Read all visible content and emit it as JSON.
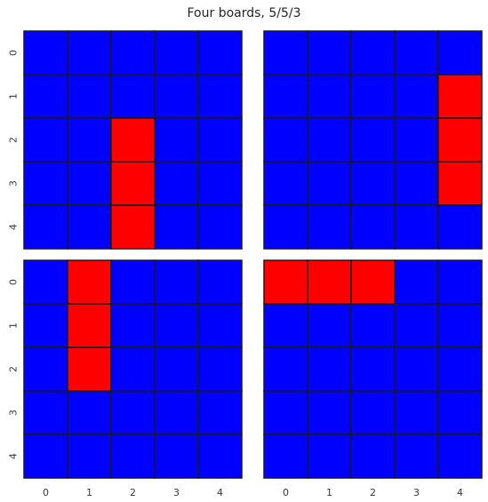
{
  "chart_data": {
    "type": "heatmap",
    "title": "Four boards, 5/5/3",
    "colors": {
      "0": "#0000ff",
      "1": "#ff0000",
      "gridline": "#1a1a1a"
    },
    "row_ticks": [
      "0",
      "1",
      "2",
      "3",
      "4"
    ],
    "col_ticks": [
      "0",
      "1",
      "2",
      "3",
      "4"
    ],
    "panels": [
      {
        "values": [
          [
            0,
            0,
            0,
            0,
            0
          ],
          [
            0,
            0,
            0,
            0,
            0
          ],
          [
            0,
            0,
            1,
            0,
            0
          ],
          [
            0,
            0,
            1,
            0,
            0
          ],
          [
            0,
            0,
            1,
            0,
            0
          ]
        ]
      },
      {
        "values": [
          [
            0,
            0,
            0,
            0,
            0
          ],
          [
            0,
            0,
            0,
            0,
            1
          ],
          [
            0,
            0,
            0,
            0,
            1
          ],
          [
            0,
            0,
            0,
            0,
            1
          ],
          [
            0,
            0,
            0,
            0,
            0
          ]
        ]
      },
      {
        "values": [
          [
            0,
            1,
            0,
            0,
            0
          ],
          [
            0,
            1,
            0,
            0,
            0
          ],
          [
            0,
            1,
            0,
            0,
            0
          ],
          [
            0,
            0,
            0,
            0,
            0
          ],
          [
            0,
            0,
            0,
            0,
            0
          ]
        ]
      },
      {
        "values": [
          [
            1,
            1,
            1,
            0,
            0
          ],
          [
            0,
            0,
            0,
            0,
            0
          ],
          [
            0,
            0,
            0,
            0,
            0
          ],
          [
            0,
            0,
            0,
            0,
            0
          ],
          [
            0,
            0,
            0,
            0,
            0
          ]
        ]
      }
    ]
  }
}
